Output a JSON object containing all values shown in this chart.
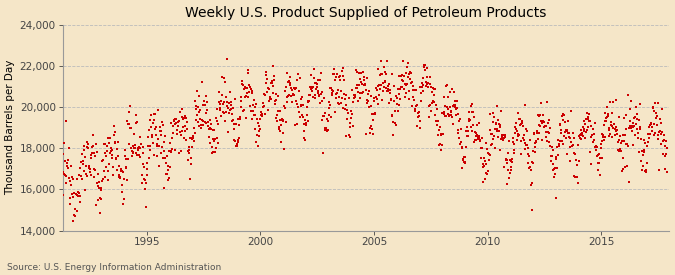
{
  "title": "Weekly U.S. Product Supplied of Petroleum Products",
  "ylabel": "Thousand Barrels per Day",
  "source_text": "Source: U.S. Energy Information Administration",
  "background_color": "#f5e6c8",
  "dot_color": "#cc0000",
  "grid_color": "#bbbbbb",
  "ylim": [
    14000,
    24000
  ],
  "yticks": [
    14000,
    16000,
    18000,
    20000,
    22000,
    24000
  ],
  "ytick_labels": [
    "14,000",
    "16,000",
    "18,000",
    "20,000",
    "22,000",
    "24,000"
  ],
  "x_start_year": 1991,
  "x_end_year": 2017.9,
  "xlim_left": 1991.3,
  "xlim_right": 2018.0,
  "xticks": [
    1995,
    2000,
    2005,
    2010,
    2015
  ],
  "dot_size": 4,
  "dot_marker": "s"
}
